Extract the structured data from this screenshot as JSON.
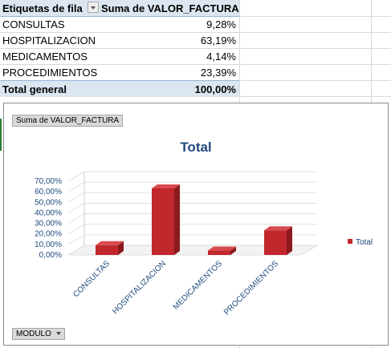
{
  "pivot": {
    "header": {
      "row_label": "Etiquetas de fila",
      "value_label": "Suma de VALOR_FACTURA"
    },
    "rows": [
      {
        "label": "CONSULTAS",
        "value": "9,28%"
      },
      {
        "label": "HOSPITALIZACION",
        "value": "63,19%"
      },
      {
        "label": "MEDICAMENTOS",
        "value": "4,14%"
      },
      {
        "label": "PROCEDIMIENTOS",
        "value": "23,39%"
      }
    ],
    "total": {
      "label": "Total general",
      "value": "100,00%"
    }
  },
  "chart": {
    "value_field_button": "Suma de VALOR_FACTURA",
    "axis_field_button": "MODULO"
  },
  "chart_data": {
    "type": "bar",
    "title": "Total",
    "categories": [
      "CONSULTAS",
      "HOSPITALIZACION",
      "MEDICAMENTOS",
      "PROCEDIMIENTOS"
    ],
    "series": [
      {
        "name": "Total",
        "values": [
          9.28,
          63.19,
          4.14,
          23.39
        ],
        "color": "#c0282d"
      }
    ],
    "ylim": [
      0,
      70
    ],
    "yticks": [
      "0,00%",
      "10,00%",
      "20,00%",
      "30,00%",
      "40,00%",
      "50,00%",
      "60,00%",
      "70,00%"
    ],
    "legend_position": "right",
    "grid": true
  }
}
